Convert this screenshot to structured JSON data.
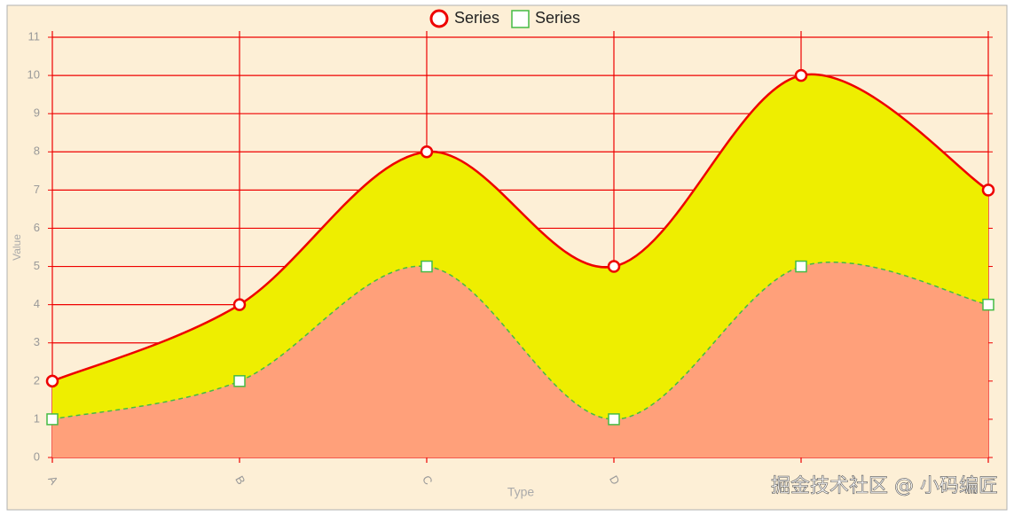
{
  "chart_data": {
    "type": "area-spline",
    "categories": [
      "A",
      "B",
      "C",
      "D",
      null,
      null
    ],
    "series": [
      {
        "name": "Series",
        "color": "#ee0000",
        "fill": "#eeee00",
        "marker": "circle",
        "dashed": false,
        "values": [
          2,
          4,
          8,
          5,
          10,
          7
        ]
      },
      {
        "name": "Series",
        "color": "#44bb44",
        "fill": "#ffa07a",
        "marker": "square",
        "dashed": true,
        "values": [
          1,
          2,
          5,
          1,
          5,
          4
        ]
      }
    ],
    "ylim": [
      0,
      11
    ],
    "yticks": [
      0,
      1,
      2,
      3,
      4,
      5,
      6,
      7,
      8,
      9,
      10,
      11
    ],
    "grid": true,
    "grid_color": "#ee0000",
    "y_label": "Value",
    "x_label": "Type",
    "legend": "top",
    "watermark": "掘金技术社区 @ 小码编匠"
  }
}
